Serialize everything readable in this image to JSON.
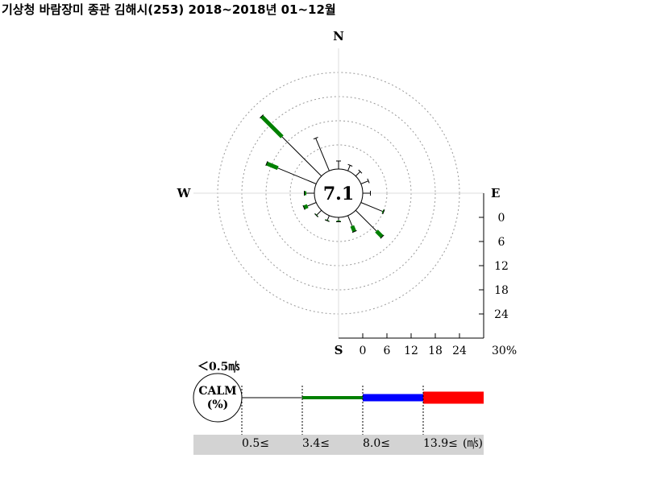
{
  "title": "기상청 바람장미 종관 김해시(253) 2018~2018년 01~12월",
  "chart_data": {
    "type": "windrose",
    "calm_percent": "7.1",
    "directions": [
      "N",
      "E",
      "S",
      "W"
    ],
    "radial_scale": {
      "max": 30,
      "ticks": [
        0,
        6,
        12,
        18,
        24
      ],
      "end_label": "30%"
    },
    "sectors": [
      {
        "dir": "N",
        "bands": [
          2.0,
          0,
          0,
          0
        ]
      },
      {
        "dir": "NNE",
        "bands": [
          1.5,
          0,
          0,
          0
        ]
      },
      {
        "dir": "NE",
        "bands": [
          1.6,
          0,
          0,
          0
        ]
      },
      {
        "dir": "ENE",
        "bands": [
          2.0,
          0,
          0,
          0
        ]
      },
      {
        "dir": "E",
        "bands": [
          1.9,
          0,
          0,
          0
        ]
      },
      {
        "dir": "ESE",
        "bands": [
          5.8,
          0.3,
          0,
          0
        ]
      },
      {
        "dir": "SE",
        "bands": [
          7.3,
          2.0,
          0,
          0
        ]
      },
      {
        "dir": "SSE",
        "bands": [
          2.8,
          1.5,
          0,
          0
        ]
      },
      {
        "dir": "S",
        "bands": [
          0.8,
          0.3,
          0,
          0
        ]
      },
      {
        "dir": "SSW",
        "bands": [
          1.2,
          0.2,
          0,
          0
        ]
      },
      {
        "dir": "SW",
        "bands": [
          1.6,
          0.2,
          0,
          0
        ]
      },
      {
        "dir": "WSW",
        "bands": [
          2.3,
          1.0,
          0,
          0
        ]
      },
      {
        "dir": "W",
        "bands": [
          2.0,
          0.5,
          0,
          0
        ]
      },
      {
        "dir": "WNW",
        "bands": [
          10.3,
          3.0,
          0,
          0
        ]
      },
      {
        "dir": "NW",
        "bands": [
          13.8,
          7.2,
          0,
          0
        ]
      },
      {
        "dir": "NNW",
        "bands": [
          8.8,
          0,
          0,
          0
        ]
      }
    ],
    "legend": {
      "calm_label_top": "＜0.5㎧",
      "calm_box_line1": "CALM",
      "calm_box_line2": "(%)",
      "speed_labels": [
        "0.5≤",
        "3.4≤",
        "8.0≤",
        "13.9≤"
      ],
      "unit": "(㎧)",
      "band_colors": [
        "#000000",
        "#008000",
        "#0000ff",
        "#ff0000"
      ]
    }
  }
}
